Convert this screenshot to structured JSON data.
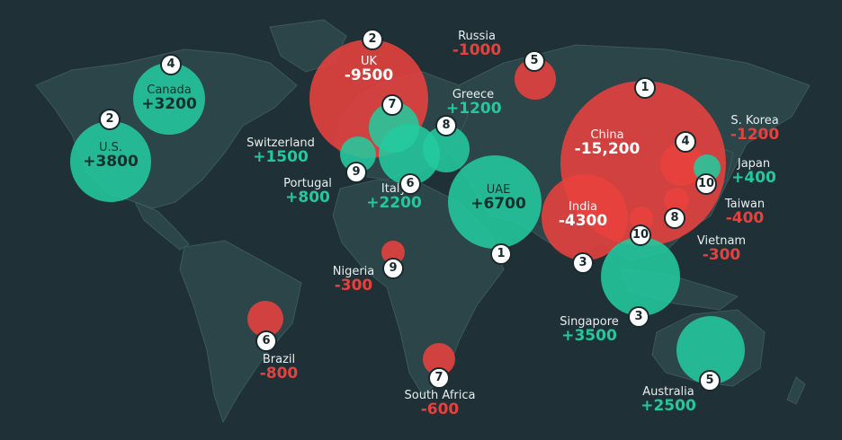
{
  "countries": [
    {
      "id": "us",
      "name": "U.S.",
      "value": "+3800",
      "rank": "2",
      "sign": "pos"
    },
    {
      "id": "canada",
      "name": "Canada",
      "value": "+3200",
      "rank": "4",
      "sign": "pos"
    },
    {
      "id": "uk",
      "name": "UK",
      "value": "-9500",
      "rank": "2",
      "sign": "neg"
    },
    {
      "id": "russia",
      "name": "Russia",
      "value": "-1000",
      "rank": "5",
      "sign": "neg"
    },
    {
      "id": "greece",
      "name": "Greece",
      "value": "+1200",
      "rank": "8",
      "sign": "pos"
    },
    {
      "id": "switzerland",
      "name": "Switzerland",
      "value": "+1500",
      "rank": "7",
      "sign": "pos"
    },
    {
      "id": "portugal",
      "name": "Portugal",
      "value": "+800",
      "rank": "9",
      "sign": "pos"
    },
    {
      "id": "italy",
      "name": "Italy",
      "value": "+2200",
      "rank": "6",
      "sign": "pos"
    },
    {
      "id": "uae",
      "name": "UAE",
      "value": "+6700",
      "rank": "1",
      "sign": "pos"
    },
    {
      "id": "china",
      "name": "China",
      "value": "-15,200",
      "rank": "1",
      "sign": "neg"
    },
    {
      "id": "india",
      "name": "India",
      "value": "-4300",
      "rank": "3",
      "sign": "neg"
    },
    {
      "id": "s-korea",
      "name": "S. Korea",
      "value": "-1200",
      "rank": "4",
      "sign": "neg"
    },
    {
      "id": "japan",
      "name": "Japan",
      "value": "+400",
      "rank": "10",
      "sign": "pos"
    },
    {
      "id": "taiwan",
      "name": "Taiwan",
      "value": "-400",
      "rank": "8",
      "sign": "neg"
    },
    {
      "id": "vietnam",
      "name": "Vietnam",
      "value": "-300",
      "rank": "10",
      "sign": "neg"
    },
    {
      "id": "singapore",
      "name": "Singapore",
      "value": "+3500",
      "rank": "3",
      "sign": "pos"
    },
    {
      "id": "australia",
      "name": "Australia",
      "value": "+2500",
      "rank": "5",
      "sign": "pos"
    },
    {
      "id": "nigeria",
      "name": "Nigeria",
      "value": "-300",
      "rank": "9",
      "sign": "neg"
    },
    {
      "id": "brazil",
      "name": "Brazil",
      "value": "-800",
      "rank": "6",
      "sign": "neg"
    },
    {
      "id": "south-africa",
      "name": "South Africa",
      "value": "-600",
      "rank": "7",
      "sign": "neg"
    }
  ],
  "colors": {
    "positive": "#23c99e",
    "negative": "#e8413d",
    "land": "#2b4549",
    "ocean": "#1f3037"
  }
}
